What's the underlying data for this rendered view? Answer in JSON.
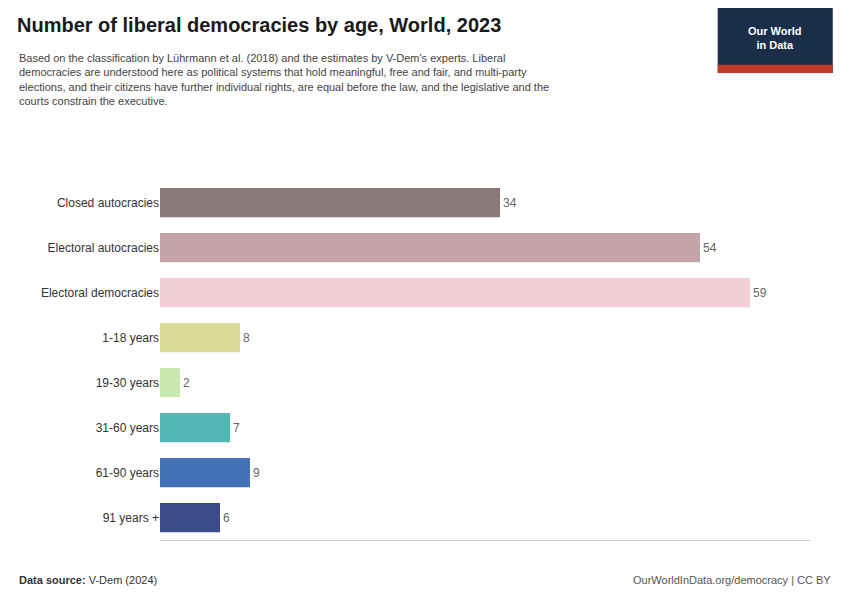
{
  "chart_data": {
    "type": "bar",
    "orientation": "horizontal",
    "title": "Number of liberal democracies by age, World, 2023",
    "subtitle": "Based on the classification by Lührmann et al. (2018) and the estimates by V-Dem's experts. Liberal\ndemocracies are understood here as political systems that hold meaningful, free and fair, and multi-party\nelections, and their citizens have further individual rights, are equal before the law, and the legislative and the\ncourts constrain the executive.",
    "categories": [
      "Closed autocracies",
      "Electoral autocracies",
      "Electoral democracies",
      "1-18 years",
      "19-30 years",
      "31-60 years",
      "61-90 years",
      "91 years +"
    ],
    "values": [
      34,
      54,
      59,
      8,
      2,
      7,
      9,
      6
    ],
    "colors": [
      "#8b7878",
      "#c4a4aa",
      "#f2d0d6",
      "#d8dc96",
      "#c8e8b0",
      "#52b8b4",
      "#4472b8",
      "#3a4a8a"
    ],
    "xlim": [
      0,
      65
    ],
    "tick_labels": "y",
    "grid": false,
    "data_labels": true,
    "annotations": [
      "Data source:",
      " V-Dem (2024)",
      "OurWorldInData.org/democracy | CC BY",
      "Our World",
      "in Data"
    ]
  }
}
